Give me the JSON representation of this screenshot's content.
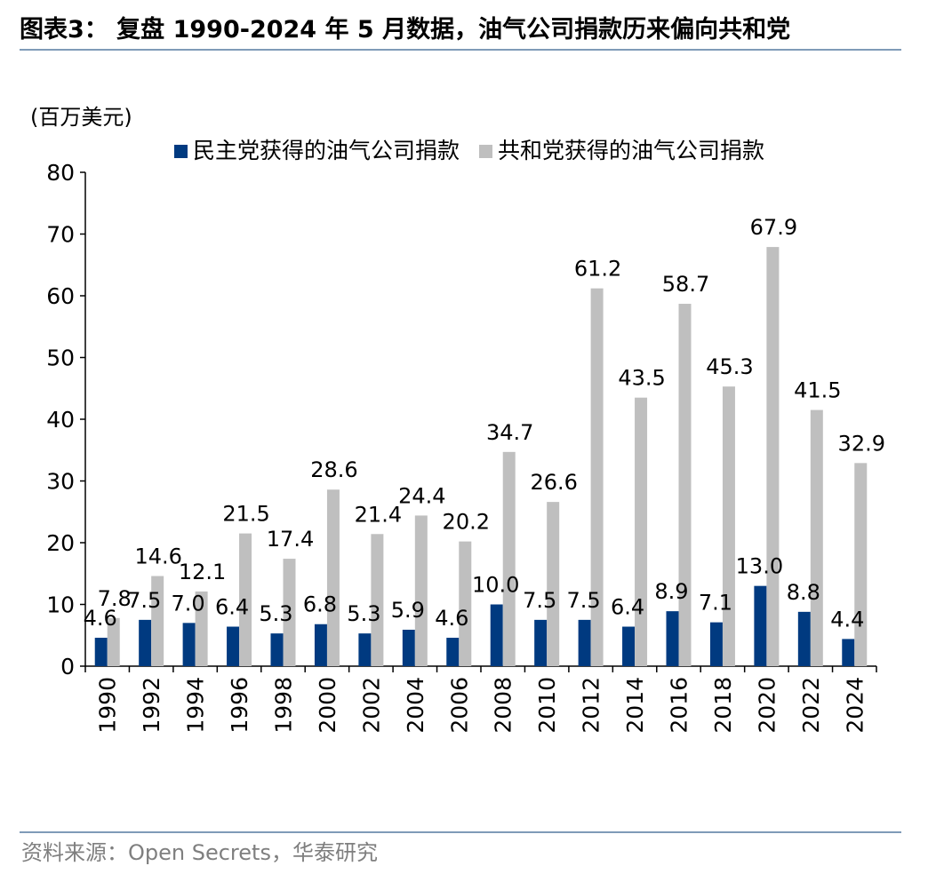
{
  "title": "图表3：  复盘 1990-2024 年 5 月数据，油气公司捐款历来偏向共和党",
  "source": "资料来源：Open Secrets，华泰研究",
  "colors": {
    "democrat": "#003a80",
    "republican": "#bfbfbf",
    "rule": "#7f9bb8"
  },
  "chart_data": {
    "type": "bar",
    "unit_label": "(百万美元)",
    "categories": [
      "1990",
      "1992",
      "1994",
      "1996",
      "1998",
      "2000",
      "2002",
      "2004",
      "2006",
      "2008",
      "2010",
      "2012",
      "2014",
      "2016",
      "2018",
      "2020",
      "2022",
      "2024"
    ],
    "series": [
      {
        "name": "民主党获得的油气公司捐款",
        "values": [
          4.6,
          7.5,
          7.0,
          6.4,
          5.3,
          6.8,
          5.3,
          5.9,
          4.6,
          10.0,
          7.5,
          7.5,
          6.4,
          8.9,
          7.1,
          13.0,
          8.8,
          4.4
        ]
      },
      {
        "name": "共和党获得的油气公司捐款",
        "values": [
          7.8,
          14.6,
          12.1,
          21.5,
          17.4,
          28.6,
          21.4,
          24.4,
          20.2,
          34.7,
          26.6,
          61.2,
          43.5,
          58.7,
          45.3,
          67.9,
          41.5,
          32.9
        ]
      }
    ],
    "ylim": [
      0,
      80
    ],
    "yticks": [
      "0",
      "10",
      "20",
      "30",
      "40",
      "50",
      "60",
      "70",
      "80"
    ],
    "legend_position": "top",
    "grid": false
  }
}
